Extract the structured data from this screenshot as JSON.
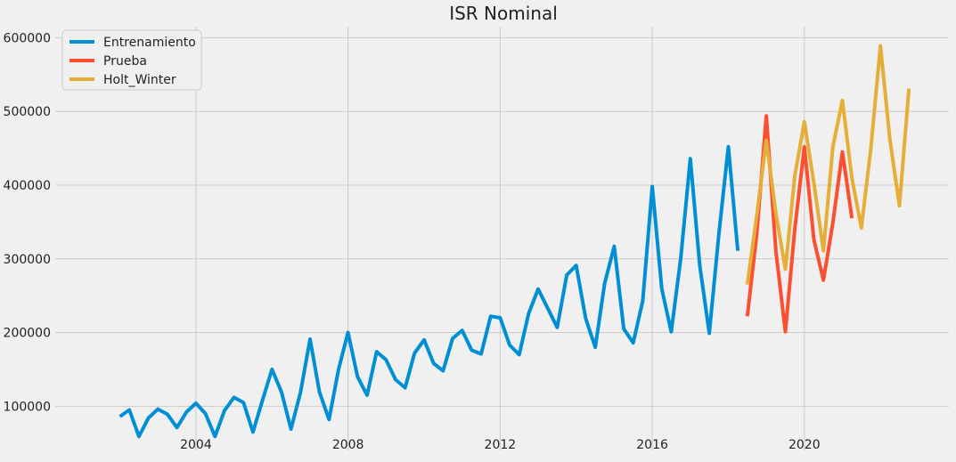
{
  "chart_data": {
    "type": "line",
    "title": "ISR Nominal",
    "xlabel": "",
    "ylabel": "",
    "xlim": [
      2000.3,
      2023.8
    ],
    "ylim": [
      40000,
      615000
    ],
    "xticks": [
      2004,
      2008,
      2012,
      2016,
      2020
    ],
    "yticks": [
      100000,
      200000,
      300000,
      400000,
      500000,
      600000
    ],
    "grid": true,
    "legend_position": "top-left",
    "series": [
      {
        "name": "Entrenamiento",
        "color": "#008fd5",
        "x": [
          2002.0,
          2002.25,
          2002.5,
          2002.75,
          2003.0,
          2003.25,
          2003.5,
          2003.75,
          2004.0,
          2004.25,
          2004.5,
          2004.75,
          2005.0,
          2005.25,
          2005.5,
          2005.75,
          2006.0,
          2006.25,
          2006.5,
          2006.75,
          2007.0,
          2007.25,
          2007.5,
          2007.75,
          2008.0,
          2008.25,
          2008.5,
          2008.75,
          2009.0,
          2009.25,
          2009.5,
          2009.75,
          2010.0,
          2010.25,
          2010.5,
          2010.75,
          2011.0,
          2011.25,
          2011.5,
          2011.75,
          2012.0,
          2012.25,
          2012.5,
          2012.75,
          2013.0,
          2013.25,
          2013.5,
          2013.75,
          2014.0,
          2014.25,
          2014.5,
          2014.75,
          2015.0,
          2015.25,
          2015.5,
          2015.75,
          2016.0,
          2016.25,
          2016.5,
          2016.75,
          2017.0,
          2017.25,
          2017.5,
          2017.75,
          2018.0,
          2018.25
        ],
        "values": [
          86000,
          95000,
          59000,
          84000,
          96000,
          89000,
          71000,
          92000,
          104000,
          90000,
          59000,
          94000,
          112000,
          105000,
          65000,
          108000,
          150000,
          119000,
          69000,
          119000,
          191000,
          119000,
          82000,
          150000,
          200000,
          140000,
          115000,
          174000,
          163000,
          136000,
          125000,
          172000,
          190000,
          158000,
          148000,
          192000,
          203000,
          176000,
          171000,
          222000,
          220000,
          183000,
          170000,
          226000,
          259000,
          233000,
          207000,
          278000,
          291000,
          219000,
          180000,
          267000,
          317000,
          205000,
          186000,
          243000,
          398000,
          259000,
          201000,
          301000,
          436000,
          291000,
          199000,
          333000,
          452000,
          311000
        ]
      },
      {
        "name": "Prueba",
        "color": "#fc4f30",
        "x": [
          2018.5,
          2018.75,
          2019.0,
          2019.25,
          2019.5,
          2019.75,
          2020.0,
          2020.25,
          2020.5,
          2020.75,
          2021.0,
          2021.25
        ],
        "values": [
          222000,
          335000,
          494000,
          311000,
          201000,
          341000,
          452000,
          326000,
          271000,
          349000,
          445000,
          355000
        ]
      },
      {
        "name": "Holt_Winter",
        "color": "#e5ae38",
        "x": [
          2018.5,
          2018.75,
          2019.0,
          2019.25,
          2019.5,
          2019.75,
          2020.0,
          2020.25,
          2020.5,
          2020.75,
          2021.0,
          2021.25,
          2021.5,
          2021.75,
          2022.0,
          2022.25,
          2022.5,
          2022.75
        ],
        "values": [
          265000,
          360000,
          461000,
          362000,
          286000,
          413000,
          486000,
          403000,
          311000,
          452000,
          515000,
          409000,
          342000,
          451000,
          589000,
          462000,
          372000,
          531000
        ]
      }
    ]
  }
}
